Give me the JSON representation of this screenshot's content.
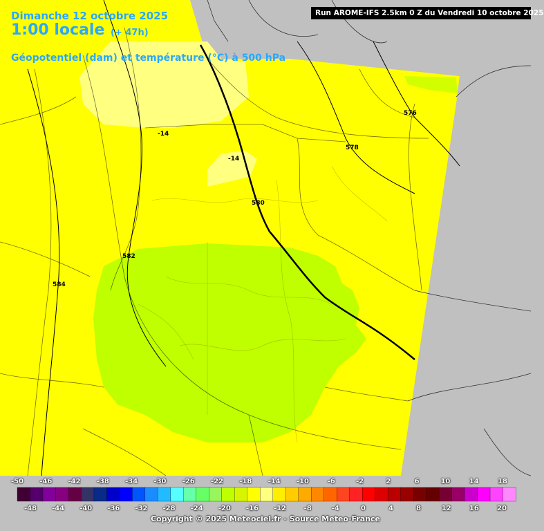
{
  "header": {
    "date": "Dimanche 12 octobre 2025",
    "time": "1:00 locale",
    "lead": "(+ 47h)",
    "parameter": "Géopotentiel (dam) et température (°C) à 500 hPa"
  },
  "run_info": "Run AROME-IFS 2.5km 0 Z du Vendredi 10 octobre 2025",
  "map": {
    "contours": [
      {
        "label": "576"
      },
      {
        "label": "578"
      },
      {
        "label": "580"
      },
      {
        "label": "582"
      },
      {
        "label": "584"
      }
    ],
    "temperature_labels": [
      "-14",
      "-14"
    ],
    "colors": {
      "background": "#c0c0c0",
      "band_minus_12": "#ffff00",
      "band_minus_14": "#ffff80",
      "band_minus_16": "#bfff00",
      "band_minus_18": "#99f55c"
    }
  },
  "legend": {
    "labels_top": [
      "-50",
      "-46",
      "-42",
      "-38",
      "-34",
      "-30",
      "-26",
      "-22",
      "-18",
      "-14",
      "-10",
      "-6",
      "-2",
      "2",
      "6",
      "10",
      "14",
      "18"
    ],
    "labels_bottom": [
      "-48",
      "-44",
      "-40",
      "-36",
      "-32",
      "-28",
      "-24",
      "-20",
      "-16",
      "-12",
      "-8",
      "-4",
      "0",
      "4",
      "8",
      "12",
      "16",
      "20"
    ],
    "colors": [
      "#400033",
      "#55006a",
      "#800099",
      "#86007f",
      "#660044",
      "#333366",
      "#0a2a88",
      "#0000cc",
      "#0000ff",
      "#0055ff",
      "#1a8cff",
      "#22bbff",
      "#55ffff",
      "#66ffaa",
      "#66ff66",
      "#99f55c",
      "#bfff00",
      "#d8f500",
      "#ffff00",
      "#ffff80",
      "#ffee00",
      "#ffcc00",
      "#ffaa00",
      "#ff8800",
      "#ff6600",
      "#ff4422",
      "#ff2222",
      "#ff0000",
      "#dd0000",
      "#bb0000",
      "#990000",
      "#770000",
      "#660000",
      "#770033",
      "#990066",
      "#cc00cc",
      "#ff00ff",
      "#ff44ff",
      "#ff88ff"
    ]
  },
  "copyright": "Copyright © 2025 Meteociel.fr - Source Meteo-France"
}
